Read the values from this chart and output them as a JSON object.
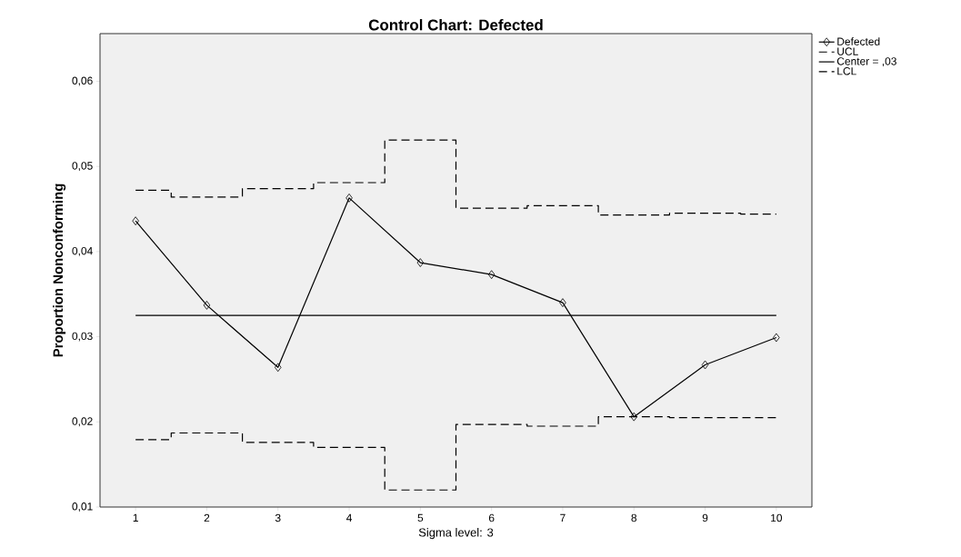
{
  "chart_data": {
    "type": "line",
    "title": "Control Chart: Defected",
    "xlabel": "Sigma level: 3",
    "ylabel": "Proportion Nonconforming",
    "categories": [
      "1",
      "2",
      "3",
      "4",
      "5",
      "6",
      "7",
      "8",
      "9",
      "10"
    ],
    "series": [
      {
        "name": "Defected",
        "color": "#000000",
        "line_style": "solid",
        "marker": "diamond",
        "values": [
          0.0436,
          0.0337,
          0.0264,
          0.0463,
          0.0387,
          0.0373,
          0.034,
          0.0206,
          0.0267,
          0.0299
        ]
      },
      {
        "name": "UCL",
        "type": "step",
        "color": "#000000",
        "line_style": "dashed",
        "marker": "none",
        "values": [
          0.0472,
          0.0464,
          0.0474,
          0.0481,
          0.0531,
          0.0451,
          0.0454,
          0.0443,
          0.0445,
          0.0444
        ]
      },
      {
        "name": "Center = ,03",
        "color": "#000000",
        "line_style": "solid",
        "marker": "none",
        "values": [
          0.0325,
          0.0325,
          0.0325,
          0.0325,
          0.0325,
          0.0325,
          0.0325,
          0.0325,
          0.0325,
          0.0325
        ]
      },
      {
        "name": "LCL",
        "type": "step",
        "color": "#000000",
        "line_style": "dashed",
        "marker": "none",
        "values": [
          0.0179,
          0.0187,
          0.0176,
          0.017,
          0.012,
          0.0197,
          0.0195,
          0.0206,
          0.0205,
          0.0205
        ]
      }
    ],
    "ylim": [
      0.01,
      0.0656
    ],
    "yticks": [
      {
        "value": 0.01,
        "label": "0,01"
      },
      {
        "value": 0.02,
        "label": "0,02"
      },
      {
        "value": 0.03,
        "label": "0,03"
      },
      {
        "value": 0.04,
        "label": "0,04"
      },
      {
        "value": 0.05,
        "label": "0,05"
      },
      {
        "value": 0.06,
        "label": "0,06"
      }
    ],
    "grid": false,
    "legend": "top right"
  }
}
